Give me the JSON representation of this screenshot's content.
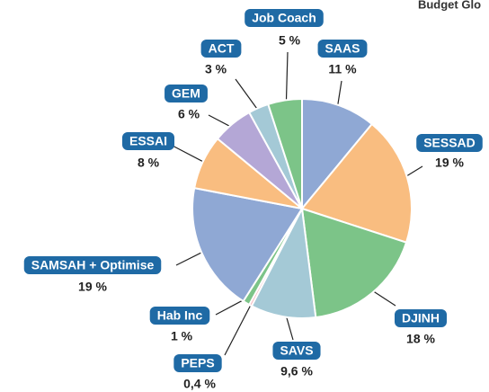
{
  "chart_data": {
    "type": "pie",
    "title": "Budget Glo",
    "categories": [
      "SAAS",
      "SESSAD",
      "DJINH",
      "SAVS",
      "PEPS",
      "Hab Inc",
      "SAMSAH + Optimise",
      "ESSAI",
      "GEM",
      "ACT",
      "Job Coach"
    ],
    "values": [
      11,
      19,
      18,
      9.6,
      0.4,
      1,
      19,
      8,
      6,
      3,
      5
    ],
    "value_labels": [
      "11 %",
      "19 %",
      "18 %",
      "9,6 %",
      "0,4 %",
      "1 %",
      "19 %",
      "8 %",
      "6 %",
      "3 %",
      "5 %"
    ],
    "colors": [
      "#8fa8d4",
      "#f9bd80",
      "#7cc488",
      "#a4c9d6",
      "#f4b0b8",
      "#7cc488",
      "#8fa8d4",
      "#f9bd80",
      "#b4a7d6",
      "#a4c9d6",
      "#7cc488"
    ]
  }
}
